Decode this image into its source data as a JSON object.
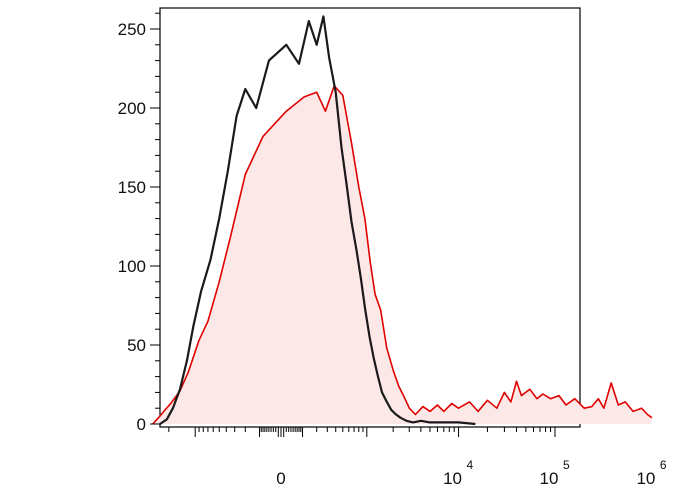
{
  "chart_data": {
    "type": "histogram",
    "title": "",
    "xlabel": "",
    "ylabel": "",
    "x_scale": "biexponential",
    "grid": false,
    "legend": "none",
    "ylim": [
      0,
      260
    ],
    "y_ticks": [
      {
        "value": 0,
        "label": "0"
      },
      {
        "value": 50,
        "label": "50"
      },
      {
        "value": 100,
        "label": "100"
      },
      {
        "value": 150,
        "label": "150"
      },
      {
        "value": 200,
        "label": "200"
      },
      {
        "value": 250,
        "label": "250"
      }
    ],
    "x_ticks": [
      {
        "value": 0,
        "base": "0",
        "exp": ""
      },
      {
        "value": 10000,
        "base": "10",
        "exp": "4"
      },
      {
        "value": 100000,
        "base": "10",
        "exp": "5"
      },
      {
        "value": 1000000,
        "base": "10",
        "exp": "6"
      }
    ],
    "series": [
      {
        "color": "#e00000",
        "fill": "#fde8e8",
        "points": [
          [
            -3000,
            0
          ],
          [
            -2500,
            5
          ],
          [
            -2200,
            9
          ],
          [
            -1900,
            13
          ],
          [
            -1500,
            21
          ],
          [
            -1200,
            33
          ],
          [
            -900,
            53
          ],
          [
            -700,
            65
          ],
          [
            -500,
            90
          ],
          [
            -350,
            118
          ],
          [
            -200,
            158
          ],
          [
            -80,
            182
          ],
          [
            20,
            198
          ],
          [
            110,
            207
          ],
          [
            200,
            210
          ],
          [
            280,
            198
          ],
          [
            380,
            214
          ],
          [
            500,
            208
          ],
          [
            650,
            178
          ],
          [
            800,
            150
          ],
          [
            950,
            130
          ],
          [
            1100,
            102
          ],
          [
            1250,
            82
          ],
          [
            1450,
            72
          ],
          [
            1700,
            48
          ],
          [
            2000,
            34
          ],
          [
            2300,
            24
          ],
          [
            2600,
            18
          ],
          [
            3000,
            10
          ],
          [
            3500,
            6
          ],
          [
            4200,
            11
          ],
          [
            5000,
            8
          ],
          [
            6000,
            12
          ],
          [
            7000,
            8
          ],
          [
            8500,
            13
          ],
          [
            10000,
            10
          ],
          [
            13000,
            14
          ],
          [
            16000,
            8
          ],
          [
            20000,
            15
          ],
          [
            25000,
            10
          ],
          [
            30000,
            20
          ],
          [
            35000,
            14
          ],
          [
            40000,
            27
          ],
          [
            45000,
            18
          ],
          [
            55000,
            22
          ],
          [
            65000,
            16
          ],
          [
            75000,
            19
          ],
          [
            90000,
            16
          ],
          [
            110000,
            18
          ],
          [
            130000,
            12
          ],
          [
            160000,
            16
          ],
          [
            200000,
            10
          ],
          [
            240000,
            11
          ],
          [
            280000,
            16
          ],
          [
            320000,
            10
          ],
          [
            380000,
            26
          ],
          [
            450000,
            12
          ],
          [
            530000,
            14
          ],
          [
            640000,
            8
          ],
          [
            780000,
            10
          ],
          [
            900000,
            6
          ],
          [
            1000000,
            4
          ]
        ]
      },
      {
        "color": "#1a1a1a",
        "fill": "none",
        "points": [
          [
            -2500,
            0
          ],
          [
            -2100,
            3
          ],
          [
            -1800,
            10
          ],
          [
            -1500,
            22
          ],
          [
            -1250,
            40
          ],
          [
            -1050,
            62
          ],
          [
            -850,
            84
          ],
          [
            -650,
            104
          ],
          [
            -500,
            130
          ],
          [
            -380,
            160
          ],
          [
            -280,
            195
          ],
          [
            -200,
            212
          ],
          [
            -120,
            200
          ],
          [
            -50,
            230
          ],
          [
            20,
            240
          ],
          [
            80,
            228
          ],
          [
            140,
            255
          ],
          [
            200,
            240
          ],
          [
            260,
            258
          ],
          [
            320,
            232
          ],
          [
            400,
            210
          ],
          [
            480,
            175
          ],
          [
            560,
            152
          ],
          [
            650,
            128
          ],
          [
            750,
            110
          ],
          [
            850,
            92
          ],
          [
            960,
            72
          ],
          [
            1080,
            55
          ],
          [
            1200,
            42
          ],
          [
            1350,
            30
          ],
          [
            1500,
            20
          ],
          [
            1700,
            14
          ],
          [
            1900,
            9
          ],
          [
            2150,
            6
          ],
          [
            2400,
            4
          ],
          [
            2800,
            2
          ],
          [
            3300,
            1
          ],
          [
            4000,
            2
          ],
          [
            5000,
            1
          ],
          [
            6000,
            1
          ],
          [
            7000,
            1
          ],
          [
            8000,
            1
          ],
          [
            10000,
            1
          ],
          [
            15000,
            0
          ]
        ]
      }
    ]
  }
}
